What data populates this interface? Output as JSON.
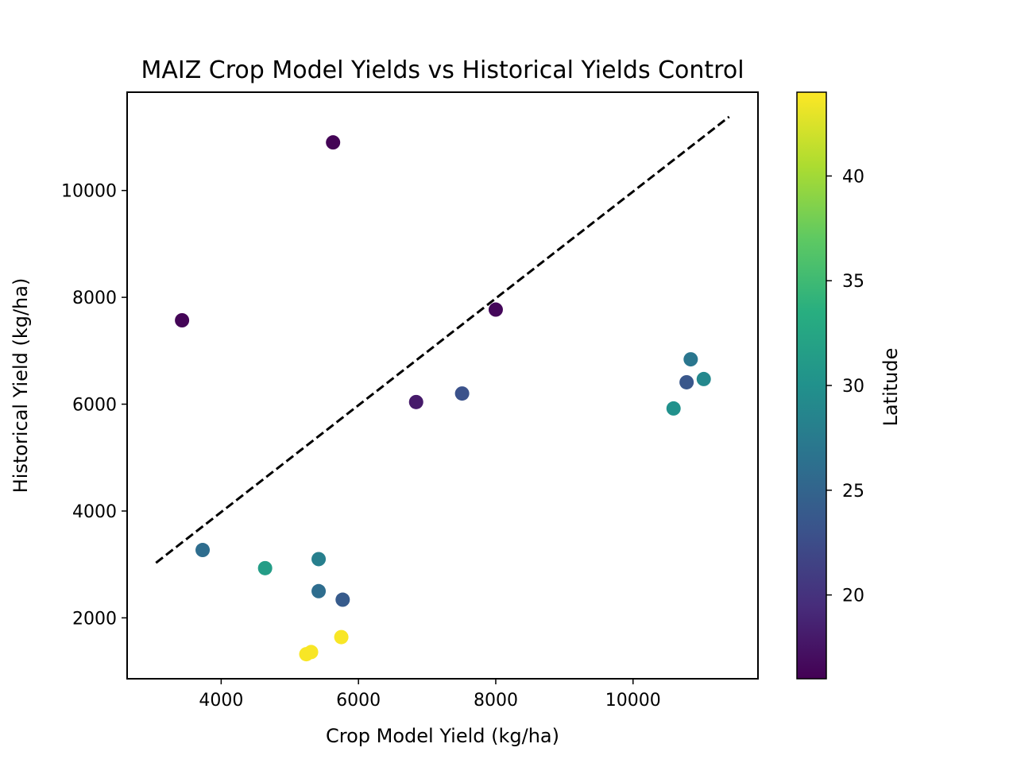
{
  "chart_data": {
    "type": "scatter",
    "title": "MAIZ Crop Model Yields vs Historical Yields Control",
    "xlabel": "Crop Model Yield (kg/ha)",
    "ylabel": "Historical Yield (kg/ha)",
    "xlim": [
      2630,
      11820
    ],
    "ylim": [
      860,
      11840
    ],
    "x_ticks": [
      4000,
      6000,
      8000,
      10000
    ],
    "y_ticks": [
      2000,
      4000,
      6000,
      8000,
      10000
    ],
    "x_tick_labels": [
      "4000",
      "6000",
      "8000",
      "10000"
    ],
    "y_tick_labels": [
      "2000",
      "4000",
      "6000",
      "8000",
      "10000"
    ],
    "grid": false,
    "legend": "none",
    "colorbar": {
      "label": "Latitude",
      "colormap": "viridis",
      "range": [
        16,
        44
      ],
      "ticks": [
        20,
        25,
        30,
        35,
        40
      ],
      "tick_labels": [
        "20",
        "25",
        "30",
        "35",
        "40"
      ]
    },
    "reference_line": {
      "style": "dashed",
      "color": "#000000",
      "x": [
        3050,
        11400
      ],
      "y": [
        3030,
        11380
      ]
    },
    "points": [
      {
        "x": 5630,
        "y": 10900,
        "latitude": 16.2
      },
      {
        "x": 3430,
        "y": 7570,
        "latitude": 16.3
      },
      {
        "x": 8000,
        "y": 7770,
        "latitude": 16.5
      },
      {
        "x": 6840,
        "y": 6040,
        "latitude": 18.0
      },
      {
        "x": 7510,
        "y": 6200,
        "latitude": 23.0
      },
      {
        "x": 10840,
        "y": 6840,
        "latitude": 27.0
      },
      {
        "x": 10780,
        "y": 6410,
        "latitude": 23.5
      },
      {
        "x": 11030,
        "y": 6470,
        "latitude": 29.0
      },
      {
        "x": 10590,
        "y": 5920,
        "latitude": 30.0
      },
      {
        "x": 3730,
        "y": 3270,
        "latitude": 26.0
      },
      {
        "x": 4640,
        "y": 2930,
        "latitude": 31.5
      },
      {
        "x": 5420,
        "y": 3100,
        "latitude": 28.0
      },
      {
        "x": 5420,
        "y": 2500,
        "latitude": 26.0
      },
      {
        "x": 5770,
        "y": 2340,
        "latitude": 24.0
      },
      {
        "x": 5750,
        "y": 1640,
        "latitude": 43.8
      },
      {
        "x": 5240,
        "y": 1320,
        "latitude": 43.8
      },
      {
        "x": 5310,
        "y": 1360,
        "latitude": 43.8
      }
    ]
  }
}
